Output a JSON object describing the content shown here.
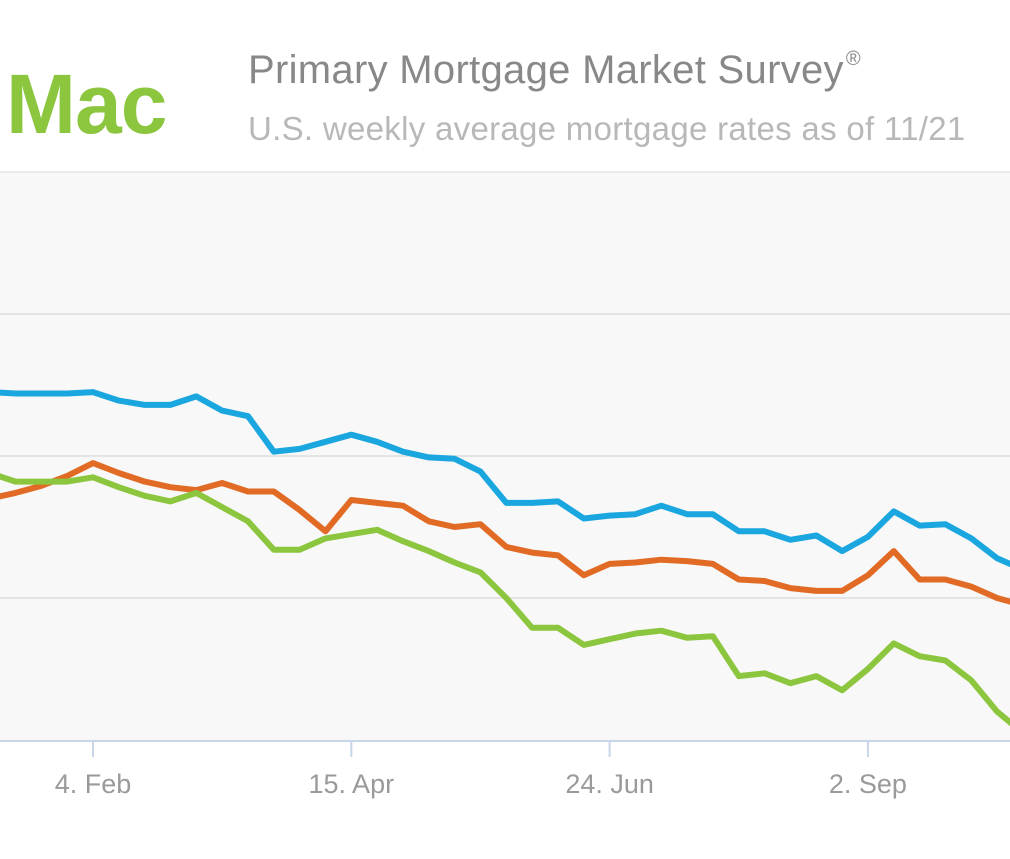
{
  "header": {
    "logo_text": "Mac",
    "logo_color": "#8cc63f",
    "title": "Primary Mortgage Market Survey",
    "title_mark": "®",
    "subtitle": "U.S. weekly average mortgage rates as of 11/21"
  },
  "chart_data": {
    "type": "line",
    "title": "Primary Mortgage Market Survey",
    "subtitle": "U.S. weekly average mortgage rates as of 11/21",
    "x_tick_labels": [
      "4. Feb",
      "15. Apr",
      "24. Jun",
      "2. Sep"
    ],
    "x_tick_weeks": [
      4,
      14,
      24,
      34
    ],
    "x_range": [
      0.4,
      39.5
    ],
    "ylim": [
      0,
      4
    ],
    "gridlines": [
      1,
      2,
      3
    ],
    "grid": true,
    "colors": {
      "plot_background": "#f8f8f9",
      "grid": "#dedede",
      "axis": "#c9d6ea",
      "tick_label": "#9a9a9a"
    },
    "x": [
      0,
      1,
      2,
      3,
      4,
      5,
      6,
      7,
      8,
      9,
      10,
      11,
      12,
      13,
      14,
      15,
      16,
      17,
      18,
      19,
      20,
      21,
      22,
      23,
      24,
      25,
      26,
      27,
      28,
      29,
      30,
      31,
      32,
      33,
      34,
      35,
      36,
      37,
      38,
      39,
      40
    ],
    "series": [
      {
        "name": "blue",
        "color": "#1aa6de",
        "values": [
          2.45,
          2.44,
          2.44,
          2.44,
          2.45,
          2.39,
          2.36,
          2.36,
          2.42,
          2.32,
          2.28,
          2.03,
          2.05,
          2.1,
          2.15,
          2.1,
          2.03,
          1.99,
          1.98,
          1.89,
          1.67,
          1.67,
          1.68,
          1.56,
          1.58,
          1.59,
          1.65,
          1.59,
          1.59,
          1.47,
          1.47,
          1.41,
          1.44,
          1.33,
          1.43,
          1.61,
          1.51,
          1.52,
          1.42,
          1.28,
          1.2
        ]
      },
      {
        "name": "orange",
        "color": "#e16b25",
        "values": [
          1.7,
          1.74,
          1.79,
          1.86,
          1.95,
          1.88,
          1.82,
          1.78,
          1.76,
          1.81,
          1.75,
          1.75,
          1.62,
          1.47,
          1.69,
          1.67,
          1.65,
          1.54,
          1.5,
          1.52,
          1.36,
          1.32,
          1.3,
          1.16,
          1.24,
          1.25,
          1.27,
          1.26,
          1.24,
          1.13,
          1.12,
          1.07,
          1.05,
          1.05,
          1.16,
          1.33,
          1.13,
          1.13,
          1.08,
          1.0,
          0.95
        ]
      },
      {
        "name": "green",
        "color": "#8cc63f",
        "values": [
          1.88,
          1.82,
          1.82,
          1.82,
          1.85,
          1.78,
          1.72,
          1.68,
          1.74,
          1.64,
          1.54,
          1.34,
          1.34,
          1.42,
          1.45,
          1.48,
          1.4,
          1.33,
          1.25,
          1.18,
          1.0,
          0.79,
          0.79,
          0.67,
          0.71,
          0.75,
          0.77,
          0.72,
          0.73,
          0.45,
          0.47,
          0.4,
          0.45,
          0.35,
          0.5,
          0.68,
          0.59,
          0.56,
          0.42,
          0.2,
          0.05
        ]
      }
    ]
  }
}
